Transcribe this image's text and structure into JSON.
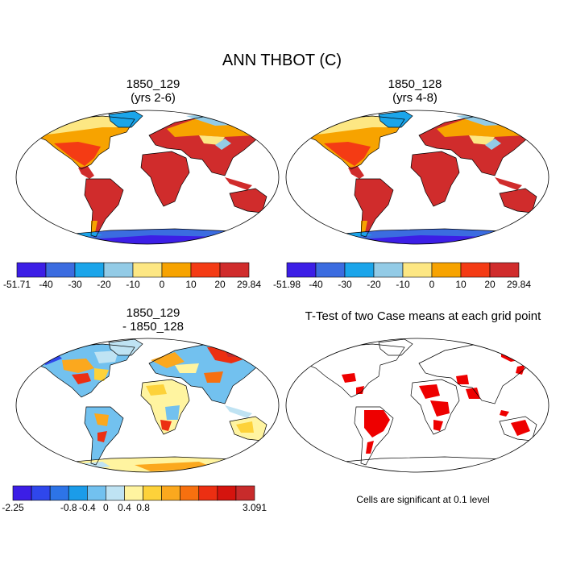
{
  "figure": {
    "title": "ANN THBOT (C)",
    "panels": [
      {
        "title_line1": "1850_129",
        "title_line2": "(yrs 2-6)"
      },
      {
        "title_line1": "1850_128",
        "title_line2": "(yrs 4-8)"
      },
      {
        "title_line1": "1850_129",
        "title_line2": "- 1850_128"
      },
      {
        "title_line1": "T-Test of two Case means at each grid point",
        "title_line2": ""
      }
    ],
    "significance_note": "Cells are significant at 0.1 level"
  },
  "colorbars": [
    {
      "colors": [
        "#3c1ee6",
        "#3b6ce0",
        "#1ba5ea",
        "#93cbe6",
        "#fde783",
        "#f7a300",
        "#f43b14",
        "#d02c2c"
      ],
      "labels": [
        "-51.71",
        "-40",
        "-30",
        "-20",
        "-10",
        "0",
        "10",
        "20",
        "29.84"
      ]
    },
    {
      "colors": [
        "#3c1ee6",
        "#3b6ce0",
        "#1ba5ea",
        "#93cbe6",
        "#fde783",
        "#f7a300",
        "#f43b14",
        "#d02c2c"
      ],
      "labels": [
        "-51.98",
        "-40",
        "-30",
        "-20",
        "-10",
        "0",
        "10",
        "20",
        "29.84"
      ]
    },
    {
      "colors": [
        "#3c1ee6",
        "#2f47ec",
        "#2d74e7",
        "#1b9ce9",
        "#72c1ef",
        "#bfe3f3",
        "#fff4a0",
        "#fdd23a",
        "#fba81e",
        "#f7700f",
        "#ec2f12",
        "#d5140e",
        "#c82b2b"
      ],
      "labels": [
        "-2.25",
        "",
        "-0.8",
        "-0.4",
        "0",
        "0.4",
        "0.8",
        "3.091"
      ],
      "label_at": [
        0,
        2,
        3,
        4,
        5,
        6,
        7,
        13
      ]
    }
  ],
  "map_palette": {
    "ocean": "#ffffff",
    "outline": "#000000",
    "significant": "#ee0000"
  }
}
